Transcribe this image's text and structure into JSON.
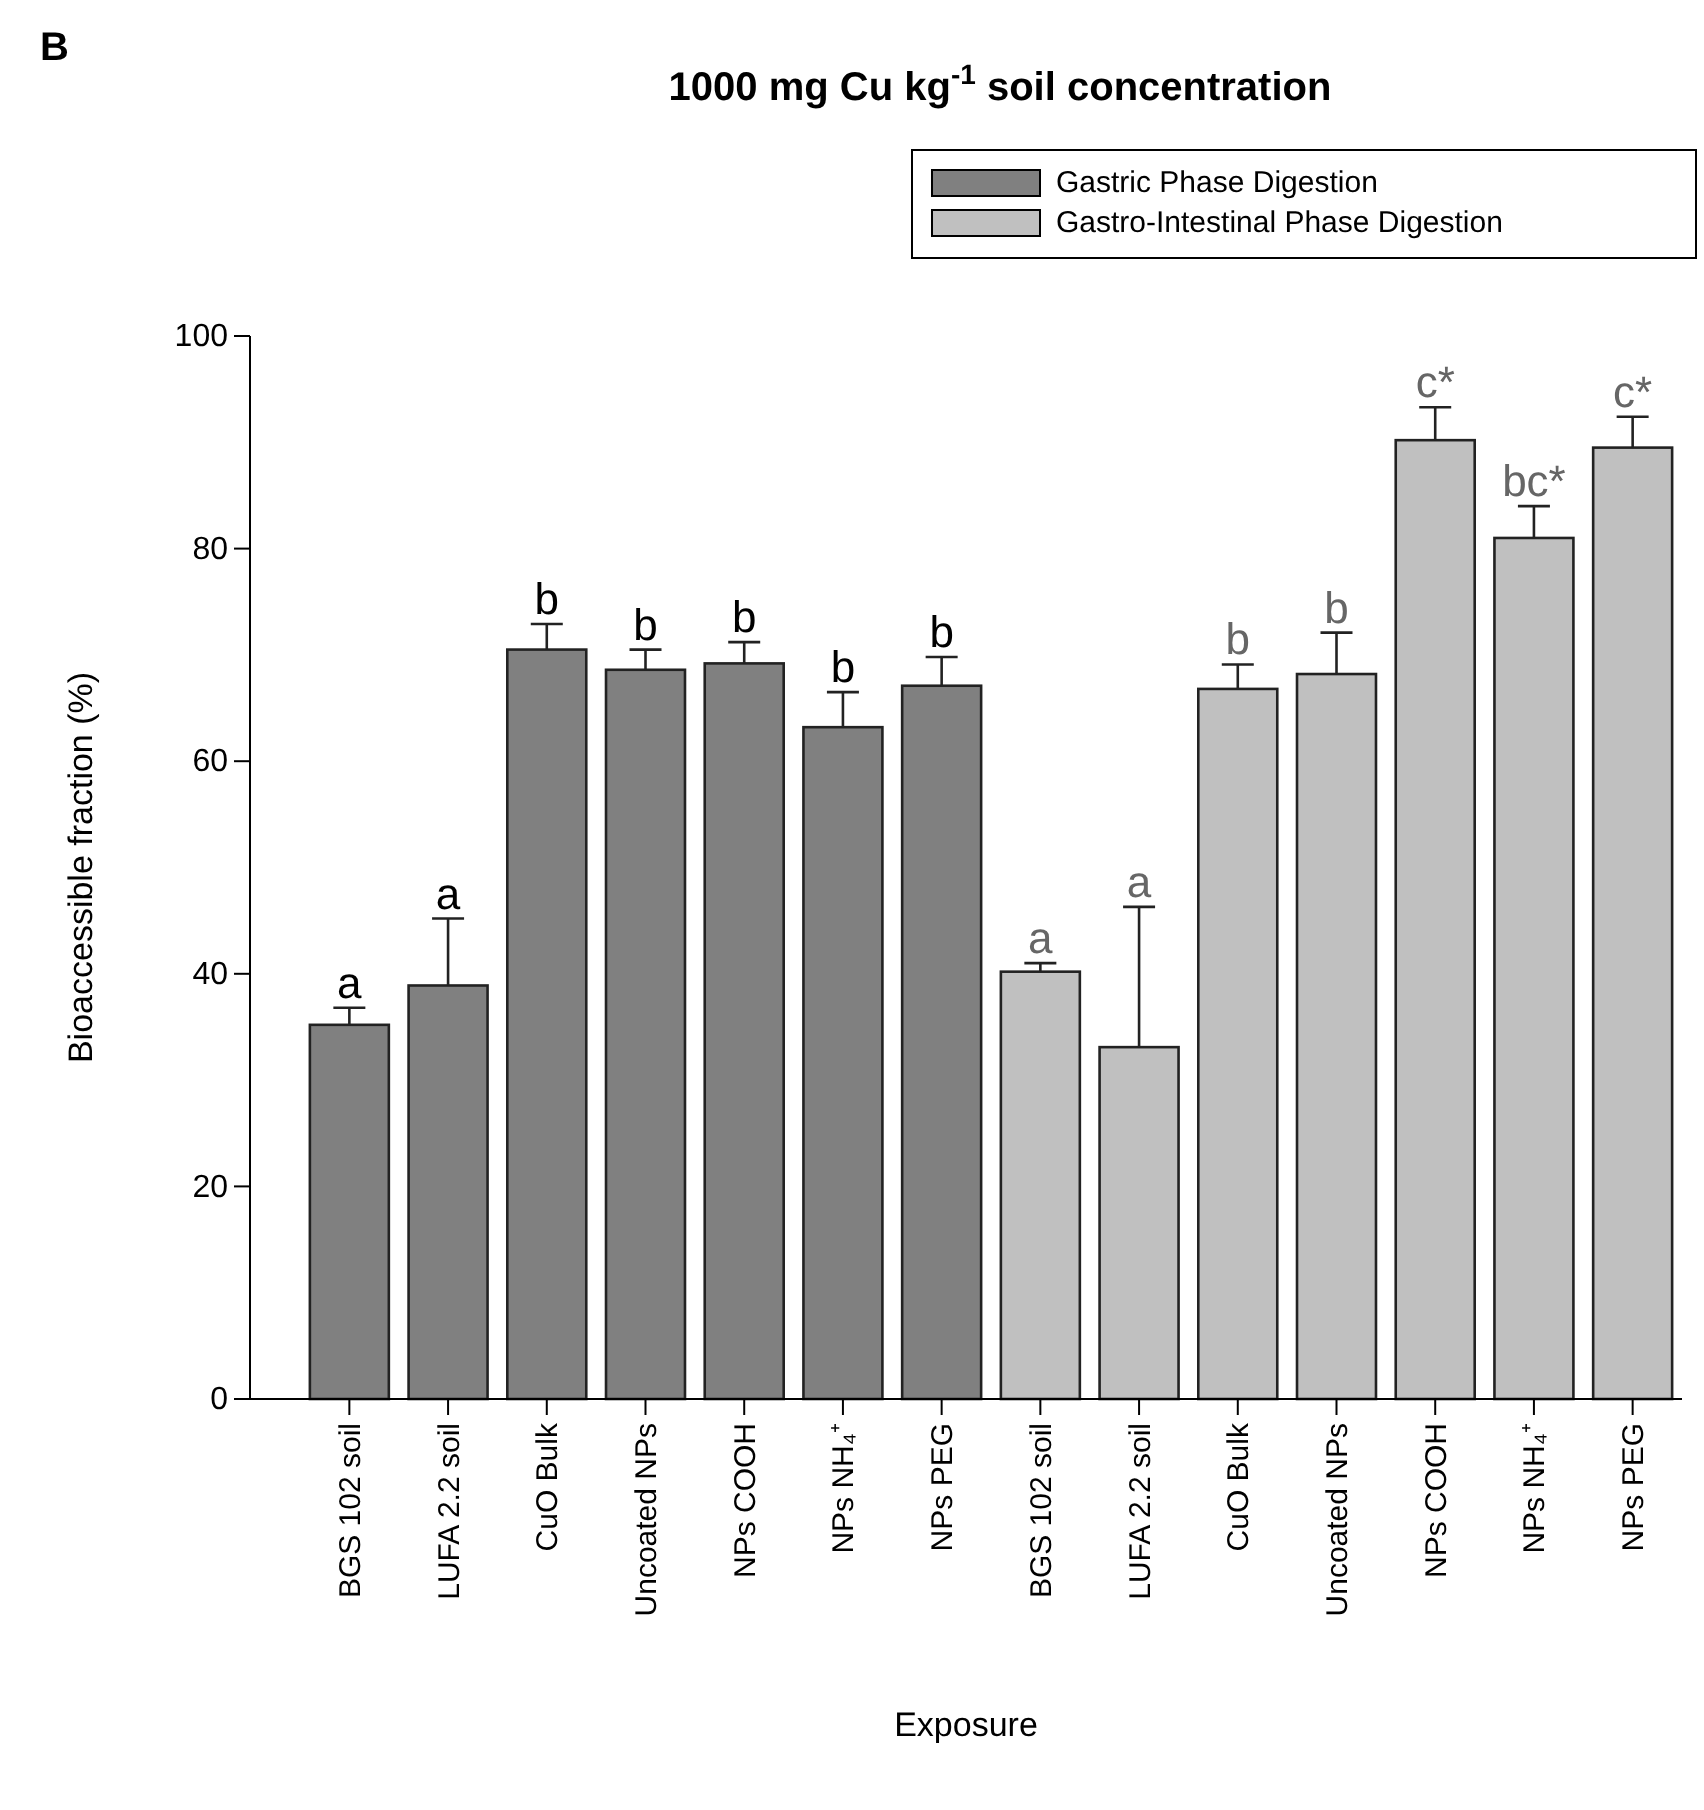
{
  "chart_data": {
    "type": "bar",
    "title": "1000 mg Cu kg$^{-1}$ soil concentration",
    "xlabel": "Exposure",
    "ylabel": "Bioaccessible fraction (%)",
    "annotations": [
      "B"
    ],
    "categories": [
      "BGS 102 soil",
      "LUFA 2.2 soil",
      "CuO Bulk",
      "Uncoated NPs",
      "NPs COOH",
      "NPs NH₄⁺",
      "NPs PEG",
      "BGS 102 soil",
      "LUFA 2.2 soil",
      "CuO Bulk",
      "Uncoated NPs",
      "NPs COOH",
      "NPs NH₄⁺",
      "NPs PEG"
    ],
    "series": [
      {
        "name": "Gastric Phase Digestion",
        "color": "#808080",
        "values": [
          35.2,
          38.9,
          70.5,
          68.6,
          69.2,
          63.2,
          67.1,
          null,
          null,
          null,
          null,
          null,
          null,
          null
        ],
        "errors": [
          1.6,
          6.3,
          2.4,
          1.9,
          2.0,
          3.3,
          2.7,
          null,
          null,
          null,
          null,
          null,
          null,
          null
        ],
        "value_labels": [
          "a",
          "a",
          "b",
          "b",
          "b",
          "b",
          "b",
          null,
          null,
          null,
          null,
          null,
          null,
          null
        ]
      },
      {
        "name": "Gastro-Intestinal Phase Digestion",
        "color": "#c0c0c0",
        "values": [
          null,
          null,
          null,
          null,
          null,
          null,
          null,
          40.2,
          33.1,
          66.8,
          68.2,
          90.2,
          81.0,
          89.5
        ],
        "errors": [
          null,
          null,
          null,
          null,
          null,
          null,
          null,
          0.8,
          13.2,
          2.3,
          3.9,
          3.1,
          3.0,
          2.9
        ],
        "value_labels": [
          null,
          null,
          null,
          null,
          null,
          null,
          null,
          "a",
          "a",
          "b",
          "b",
          "c*",
          "bc*",
          "c*"
        ]
      }
    ],
    "ylim": [
      0,
      100
    ],
    "yticks": [
      0,
      20,
      40,
      60,
      80,
      100
    ],
    "legend": "top right"
  }
}
